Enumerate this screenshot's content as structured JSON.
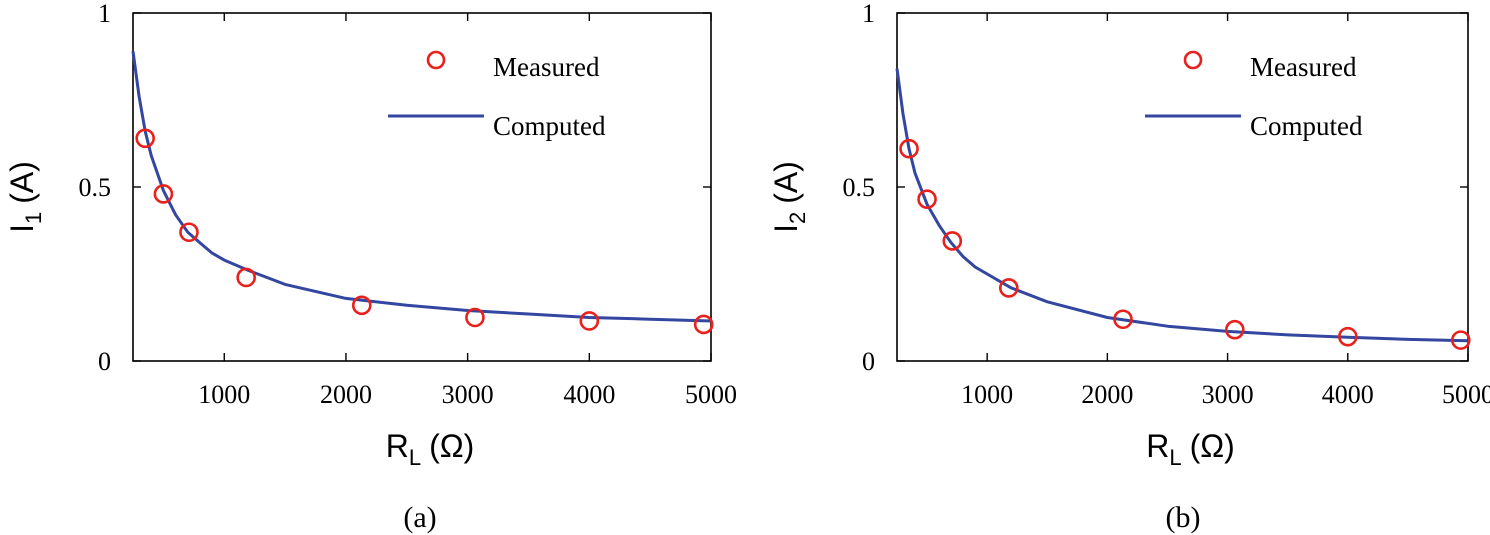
{
  "colors": {
    "measured": "#e8211d",
    "computed": "#3346a0",
    "axis": "#000000"
  },
  "chart_data": [
    {
      "type": "line",
      "caption": "(a)",
      "title": "",
      "xlabel": {
        "main": "R",
        "sub": "L",
        "unit": "(Ω)"
      },
      "ylabel": {
        "main": "I",
        "sub": "1",
        "unit": "(A)"
      },
      "xlim": [
        250,
        5000
      ],
      "ylim": [
        0,
        1
      ],
      "xticks": [
        1000,
        2000,
        3000,
        4000,
        5000
      ],
      "xtick_labels": [
        "1000",
        "2000",
        "3000",
        "4000",
        "5000"
      ],
      "yticks": [
        0,
        0.5,
        1
      ],
      "ytick_labels": [
        "0",
        "0.5",
        "1"
      ],
      "grid": false,
      "legend_position": "top-right",
      "series": [
        {
          "name": "Measured",
          "style": "markers",
          "x": [
            350,
            500,
            710,
            1180,
            2130,
            3060,
            4000,
            4940
          ],
          "y": [
            0.64,
            0.48,
            0.37,
            0.24,
            0.16,
            0.125,
            0.115,
            0.105
          ]
        },
        {
          "name": "Computed",
          "style": "line",
          "x": [
            250,
            300,
            350,
            400,
            500,
            600,
            700,
            800,
            900,
            1000,
            1200,
            1500,
            2000,
            2500,
            3000,
            3500,
            4000,
            4500,
            5000
          ],
          "y": [
            0.89,
            0.76,
            0.66,
            0.59,
            0.49,
            0.42,
            0.37,
            0.34,
            0.31,
            0.29,
            0.26,
            0.22,
            0.18,
            0.16,
            0.145,
            0.135,
            0.125,
            0.12,
            0.115
          ]
        }
      ]
    },
    {
      "type": "line",
      "caption": "(b)",
      "title": "",
      "xlabel": {
        "main": "R",
        "sub": "L",
        "unit": "(Ω)"
      },
      "ylabel": {
        "main": "I",
        "sub": "2",
        "unit": "(A)"
      },
      "xlim": [
        250,
        5000
      ],
      "ylim": [
        0,
        1
      ],
      "xticks": [
        1000,
        2000,
        3000,
        4000,
        5000
      ],
      "xtick_labels": [
        "1000",
        "2000",
        "3000",
        "4000",
        "5000"
      ],
      "yticks": [
        0,
        0.5,
        1
      ],
      "ytick_labels": [
        "0",
        "0.5",
        "1"
      ],
      "grid": false,
      "legend_position": "top-right",
      "series": [
        {
          "name": "Measured",
          "style": "markers",
          "x": [
            350,
            500,
            710,
            1180,
            2130,
            3060,
            4000,
            4940
          ],
          "y": [
            0.61,
            0.465,
            0.345,
            0.21,
            0.12,
            0.09,
            0.07,
            0.06
          ]
        },
        {
          "name": "Computed",
          "style": "line",
          "x": [
            250,
            300,
            350,
            400,
            500,
            600,
            700,
            800,
            900,
            1000,
            1200,
            1500,
            2000,
            2500,
            3000,
            3500,
            4000,
            4500,
            5000
          ],
          "y": [
            0.84,
            0.71,
            0.61,
            0.54,
            0.45,
            0.39,
            0.34,
            0.3,
            0.27,
            0.25,
            0.21,
            0.17,
            0.125,
            0.1,
            0.085,
            0.075,
            0.068,
            0.062,
            0.058
          ]
        }
      ]
    }
  ]
}
